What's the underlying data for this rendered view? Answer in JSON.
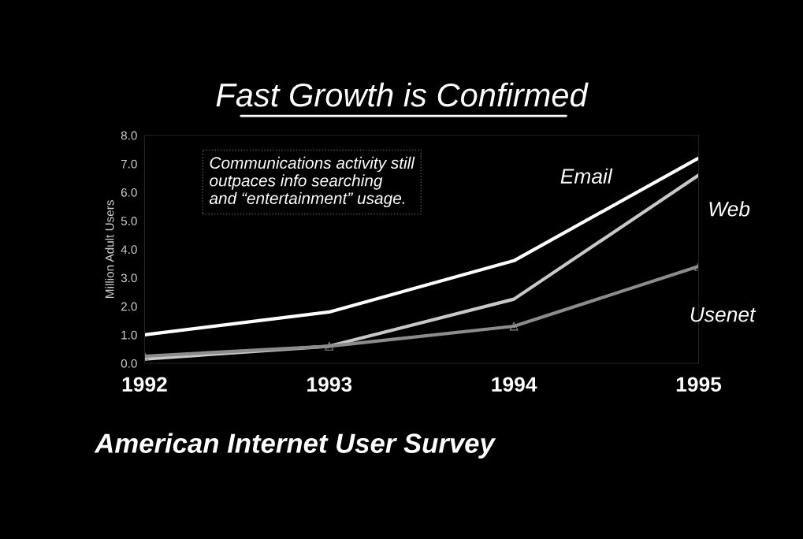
{
  "chart_data": {
    "type": "line",
    "title": "Fast Growth is Confirmed",
    "ylabel": "Million Adult Users",
    "x": [
      1992,
      1993,
      1994,
      1995
    ],
    "xlim": [
      1992,
      1995
    ],
    "xticks": [
      1992,
      1993,
      1994,
      1995
    ],
    "ylim": [
      0,
      8
    ],
    "yticks": [
      {
        "value": 0,
        "label": "0.0"
      },
      {
        "value": 1,
        "label": "1.0"
      },
      {
        "value": 2,
        "label": "2.0"
      },
      {
        "value": 3,
        "label": "3.0"
      },
      {
        "value": 4,
        "label": "4.0"
      },
      {
        "value": 5,
        "label": "5.0"
      },
      {
        "value": 6,
        "label": "6.0"
      },
      {
        "value": 7,
        "label": "7.0"
      },
      {
        "value": 8,
        "label": "8.0"
      }
    ],
    "series": [
      {
        "name": "Email",
        "color": "#ffffff",
        "values": [
          1.0,
          1.8,
          3.6,
          7.2
        ]
      },
      {
        "name": "Web",
        "color": "#c8c8c8",
        "values": [
          0.15,
          0.6,
          2.25,
          6.6
        ]
      },
      {
        "name": "Usenet",
        "color": "#8c8c8c",
        "values": [
          0.25,
          0.6,
          1.3,
          3.4
        ],
        "marker": "triangle"
      }
    ],
    "annotations": [
      "Communications activity still\noutpaces info searching\nand “entertainment” usage.",
      "American Internet User Survey"
    ],
    "grid": false,
    "legend": false
  }
}
